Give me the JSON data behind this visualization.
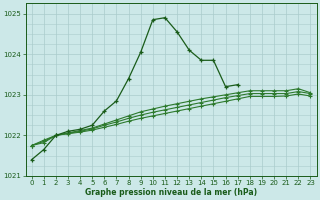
{
  "x": [
    0,
    1,
    2,
    3,
    4,
    5,
    6,
    7,
    8,
    9,
    10,
    11,
    12,
    13,
    14,
    15,
    16,
    17,
    18,
    19,
    20,
    21,
    22,
    23
  ],
  "line1": [
    1021.4,
    1021.65,
    1022.0,
    1022.1,
    1022.15,
    1022.25,
    1022.6,
    1022.85,
    1023.4,
    1024.05,
    1024.85,
    1024.9,
    1024.55,
    1024.1,
    1023.85,
    1023.85,
    1023.2,
    1023.25,
    null,
    null,
    null,
    null,
    null,
    null
  ],
  "line2": [
    1021.75,
    1021.88,
    1022.0,
    1022.06,
    1022.12,
    1022.18,
    1022.28,
    1022.38,
    1022.48,
    1022.58,
    1022.65,
    1022.72,
    1022.78,
    1022.84,
    1022.9,
    1022.95,
    1023.0,
    1023.05,
    1023.1,
    1023.1,
    1023.1,
    1023.1,
    1023.15,
    1023.05
  ],
  "line3": [
    1021.75,
    1021.85,
    1022.0,
    1022.05,
    1022.1,
    1022.16,
    1022.25,
    1022.33,
    1022.42,
    1022.5,
    1022.57,
    1022.63,
    1022.69,
    1022.75,
    1022.81,
    1022.87,
    1022.93,
    1022.98,
    1023.03,
    1023.03,
    1023.03,
    1023.03,
    1023.08,
    1023.03
  ],
  "line4": [
    1021.75,
    1021.82,
    1022.0,
    1022.04,
    1022.08,
    1022.13,
    1022.2,
    1022.27,
    1022.35,
    1022.42,
    1022.48,
    1022.54,
    1022.6,
    1022.66,
    1022.72,
    1022.78,
    1022.84,
    1022.9,
    1022.96,
    1022.96,
    1022.96,
    1022.97,
    1023.02,
    1022.97
  ],
  "bg_color": "#cce8e8",
  "grid_color": "#aacccc",
  "line_color_main": "#1a5c1a",
  "line_color_flat": "#2d7a2d",
  "xlabel": "Graphe pression niveau de la mer (hPa)",
  "ylim": [
    1021.0,
    1025.25
  ],
  "xlim": [
    -0.5,
    23.5
  ],
  "yticks": [
    1021,
    1022,
    1023,
    1024,
    1025
  ],
  "xticks": [
    0,
    1,
    2,
    3,
    4,
    5,
    6,
    7,
    8,
    9,
    10,
    11,
    12,
    13,
    14,
    15,
    16,
    17,
    18,
    19,
    20,
    21,
    22,
    23
  ]
}
